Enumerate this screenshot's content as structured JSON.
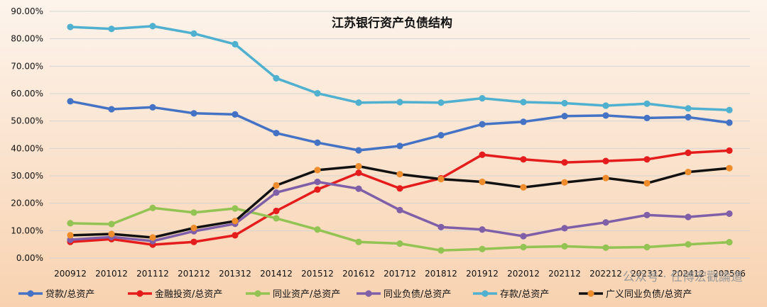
{
  "chart_data": {
    "type": "line",
    "title": "江苏银行资产负债结构",
    "categories": [
      "200912",
      "201012",
      "201112",
      "201212",
      "201312",
      "201412",
      "201512",
      "201612",
      "201712",
      "201812",
      "201912",
      "202012",
      "202112",
      "202212",
      "202312",
      "202412",
      "202506"
    ],
    "ylim": [
      0,
      90
    ],
    "y_ticks": [
      "0.00%",
      "10.00%",
      "20.00%",
      "30.00%",
      "40.00%",
      "50.00%",
      "60.00%",
      "70.00%",
      "80.00%",
      "90.00%"
    ],
    "grid": true,
    "legend_position": "bottom",
    "series": [
      {
        "name": "贷款/总资产",
        "color": "#4472c4",
        "values": [
          57.2,
          54.3,
          55.0,
          52.8,
          52.4,
          45.6,
          42.1,
          39.3,
          40.9,
          44.8,
          48.8,
          49.7,
          51.8,
          52.0,
          51.1,
          51.4,
          49.4
        ]
      },
      {
        "name": "金融投资/总资产",
        "color": "#e41c1c",
        "values": [
          5.9,
          6.9,
          4.9,
          5.9,
          8.3,
          17.2,
          25.0,
          31.1,
          25.4,
          29.1,
          37.7,
          36.0,
          34.9,
          35.4,
          36.0,
          38.4,
          39.2
        ]
      },
      {
        "name": "同业资产/总资产",
        "color": "#92c353",
        "values": [
          12.7,
          12.4,
          18.3,
          16.6,
          18.1,
          14.5,
          10.4,
          5.9,
          5.3,
          2.8,
          3.3,
          4.0,
          4.3,
          3.8,
          4.0,
          5.0,
          5.8
        ]
      },
      {
        "name": "同业负债/总资产",
        "color": "#7f5fa8",
        "values": [
          6.7,
          7.7,
          6.2,
          9.8,
          12.5,
          23.9,
          27.8,
          25.3,
          17.5,
          11.3,
          10.4,
          8.0,
          10.9,
          13.0,
          15.7,
          15.0,
          16.2
        ]
      },
      {
        "name": "存款/总资产",
        "color": "#4fb0cf",
        "values": [
          84.3,
          83.6,
          84.6,
          81.9,
          78.0,
          65.6,
          60.1,
          56.7,
          56.9,
          56.7,
          58.3,
          56.9,
          56.5,
          55.6,
          56.3,
          54.6,
          54.0
        ]
      },
      {
        "name": "广义同业负债/总资产",
        "color": "#111111",
        "values": [
          8.3,
          8.8,
          7.5,
          11.0,
          13.5,
          26.5,
          32.1,
          33.5,
          30.6,
          28.8,
          27.8,
          25.8,
          27.6,
          29.2,
          27.3,
          31.4,
          32.8
        ]
      }
    ],
    "marker_colors": {
      "广义同业负债/总资产": "#ef8c2b"
    }
  },
  "watermark": {
    "text": "公众号 · 任博宏觀論道"
  }
}
